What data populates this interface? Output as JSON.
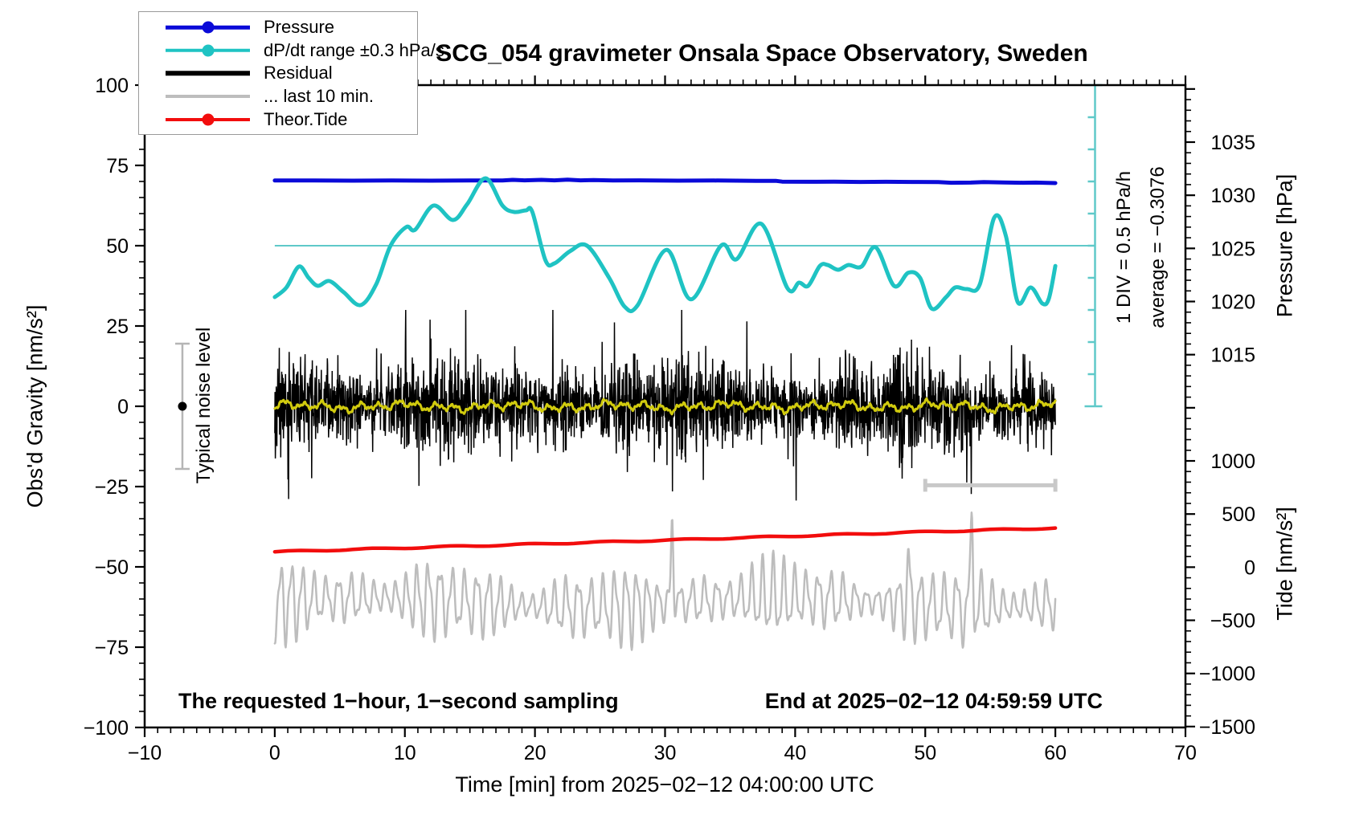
{
  "title": "SCG_054 gravimeter Onsala Space Observatory, Sweden",
  "legend": {
    "items": [
      {
        "label": "Pressure",
        "color": "#0a0ad8",
        "marker": "circle",
        "line_width": 4.5
      },
      {
        "label": "dP/dt range ±0.3 hPa/s",
        "color": "#1fc3c3",
        "marker": "circle",
        "line_width": 4.5
      },
      {
        "label": "Residual",
        "color": "#000000",
        "marker": "none",
        "line_width": 5.5
      },
      {
        "label": "... last 10 min.",
        "color": "#bdbdbd",
        "marker": "none",
        "line_width": 4
      },
      {
        "label": "Theor.Tide",
        "color": "#f20d0d",
        "marker": "circle",
        "line_width": 4
      }
    ]
  },
  "annotations": {
    "bottom_left": "The requested 1−hour, 1−second sampling",
    "bottom_right": "End at 2025−02−12 04:59:59 UTC",
    "scalebar_line1": "1 DIV = 0.5 hPa/h",
    "scalebar_line2": "average = −0.3076",
    "noise_label": "Typical noise level"
  },
  "colors": {
    "frame": "#000000",
    "ref_cyan": "#5fc9c9",
    "scalebar_gray": "#c8c8c8",
    "errorbar_gray": "#b5b5b5",
    "legend_border": "#9a9a9a"
  },
  "chart_data": {
    "type": "line",
    "title": "SCG_054 gravimeter Onsala Space Observatory, Sweden",
    "grid": false,
    "legend_position": "top-left",
    "x": {
      "label": "Time [min] from 2025−02−12 04:00:00 UTC",
      "range": [
        -10,
        70
      ],
      "major_step": 10,
      "minor_step": 1,
      "tick_values": [
        -10,
        0,
        10,
        20,
        30,
        40,
        50,
        60,
        70
      ],
      "tick_labels": [
        "−10",
        "0",
        "10",
        "20",
        "30",
        "40",
        "50",
        "60",
        "70"
      ]
    },
    "y": {
      "label": "Obs'd Gravity [nm/s²]",
      "range": [
        -100,
        100
      ],
      "major_step": 25,
      "minor_step": 5,
      "tick_values": [
        100,
        75,
        50,
        25,
        0,
        -25,
        -50,
        -75,
        -100
      ],
      "tick_labels": [
        "100",
        "75",
        "50",
        "25",
        "0",
        "−25",
        "−50",
        "−75",
        "−100"
      ]
    },
    "y2_geometry": {
      "g_top": 82.25,
      "g_step": 3.3085,
      "k_min": -5,
      "k_max": 55
    },
    "y2_pressure": {
      "label": "Pressure [hPa]",
      "tick_labels": [
        "1035",
        "1030",
        "1025",
        "1020",
        "1015"
      ],
      "k_indices": [
        0,
        5,
        10,
        15,
        20
      ],
      "hPa_per_div": 5
    },
    "y2_tide": {
      "label": "Tide [nm/s²]",
      "tick_labels": [
        "1000",
        "500",
        "0",
        "−500",
        "−1000",
        "−1500"
      ],
      "k_indices": [
        30,
        35,
        40,
        45,
        50,
        55
      ],
      "nms2_per_div": 500
    },
    "extras": {
      "dpdt_ref_line": {
        "gravity": 50,
        "t_min": 0,
        "t_max": 63.05
      },
      "dpdt_scalebar": {
        "t": 63.05,
        "g_min": 0,
        "g_max": 100,
        "divisions": 10,
        "div_label": "1 DIV = 0.5 hPa/h",
        "average": -0.3076
      },
      "noise_errorbar": {
        "t": -7.1,
        "center_g": 0,
        "half_range_g": 19.5
      },
      "last10_window_bar": {
        "t_min": 50,
        "t_max": 60,
        "g": -24.6
      }
    },
    "series": [
      {
        "name": "pressure",
        "color": "#0a0ad8",
        "width": 5,
        "smooth": false,
        "units_note": "plotted on gravity scale; right axis reads ~1031.4 hPa start, ~1031.1 hPa end, trend −0.3076 hPa/h",
        "points": [
          [
            0,
            70.3
          ],
          [
            3,
            70.3
          ],
          [
            6,
            70.25
          ],
          [
            9,
            70.3
          ],
          [
            12,
            70.25
          ],
          [
            15,
            70.3
          ],
          [
            17.5,
            70.3
          ],
          [
            18.3,
            70.5
          ],
          [
            19.2,
            70.35
          ],
          [
            20.5,
            70.5
          ],
          [
            21.5,
            70.35
          ],
          [
            22.5,
            70.55
          ],
          [
            23.5,
            70.35
          ],
          [
            24.5,
            70.45
          ],
          [
            26,
            70.3
          ],
          [
            28,
            70.35
          ],
          [
            31,
            70.25
          ],
          [
            34,
            70.3
          ],
          [
            37,
            70.2
          ],
          [
            38.5,
            70.2
          ],
          [
            39,
            69.95
          ],
          [
            41,
            69.9
          ],
          [
            43,
            69.95
          ],
          [
            45,
            69.85
          ],
          [
            47,
            69.9
          ],
          [
            49,
            69.85
          ],
          [
            51,
            69.8
          ],
          [
            52,
            69.6
          ],
          [
            53.5,
            69.65
          ],
          [
            54.5,
            69.8
          ],
          [
            56,
            69.7
          ],
          [
            57.5,
            69.6
          ],
          [
            58.5,
            69.65
          ],
          [
            60,
            69.5
          ]
        ]
      },
      {
        "name": "dpdt_range",
        "color": "#1fc3c3",
        "width": 5,
        "smooth": true,
        "units_note": "dP/dt, zero at gravity 50, full scale ±0.3 hPa/s",
        "points": [
          [
            0,
            34
          ],
          [
            0.9,
            37
          ],
          [
            1.85,
            43.5
          ],
          [
            2.6,
            40
          ],
          [
            3.3,
            37.5
          ],
          [
            4.2,
            39
          ],
          [
            5.3,
            35.5
          ],
          [
            6.6,
            31.5
          ],
          [
            7.8,
            38
          ],
          [
            8.9,
            50
          ],
          [
            10.1,
            55.8
          ],
          [
            10.8,
            55
          ],
          [
            12.2,
            62.5
          ],
          [
            13.7,
            58
          ],
          [
            14.8,
            63
          ],
          [
            16.2,
            71
          ],
          [
            17.5,
            62.5
          ],
          [
            18.4,
            60.5
          ],
          [
            19.3,
            61
          ],
          [
            19.8,
            60.5
          ],
          [
            20.8,
            45.5
          ],
          [
            21.5,
            44.5
          ],
          [
            22.7,
            48.3
          ],
          [
            24,
            50
          ],
          [
            25.7,
            40
          ],
          [
            26.9,
            31
          ],
          [
            27.9,
            31.5
          ],
          [
            30.1,
            48.7
          ],
          [
            32,
            33.3
          ],
          [
            34.3,
            50
          ],
          [
            35.5,
            45.8
          ],
          [
            37.4,
            56.8
          ],
          [
            39.4,
            36.8
          ],
          [
            40.3,
            38.5
          ],
          [
            41,
            37.5
          ],
          [
            41.9,
            43.7
          ],
          [
            42.5,
            44
          ],
          [
            43.3,
            42.5
          ],
          [
            44.1,
            44
          ],
          [
            45.1,
            43.5
          ],
          [
            46.2,
            49.5
          ],
          [
            47.6,
            37.5
          ],
          [
            48.7,
            41.6
          ],
          [
            49.6,
            40
          ],
          [
            50.5,
            30.4
          ],
          [
            51.6,
            34
          ],
          [
            52.3,
            37
          ],
          [
            53.2,
            36.5
          ],
          [
            54.2,
            38
          ],
          [
            55.3,
            58.7
          ],
          [
            56.2,
            53
          ],
          [
            57.1,
            32.5
          ],
          [
            58.1,
            37
          ],
          [
            59,
            32
          ],
          [
            59.5,
            33.5
          ],
          [
            60,
            43.7
          ]
        ]
      },
      {
        "name": "residual",
        "color": "#000000",
        "width": 1.5,
        "procedural": {
          "kind": "noise",
          "seed": 11,
          "n": 2600,
          "t_min": 0,
          "t_max": 60,
          "center": 0,
          "sigma": 6.3,
          "env": [
            [
              16.7,
              0.22,
              2.3
            ],
            [
              4.3,
              0.12,
              0.0
            ]
          ],
          "spike_prob": 0.05,
          "spike_scale": [
            1.7,
            3.2
          ],
          "clamp": 30
        }
      },
      {
        "name": "residual_mean",
        "color": "#d1cb0e",
        "width": 3,
        "procedural": {
          "kind": "sines",
          "seed": 3,
          "step": 0.075,
          "t_min": 0,
          "t_max": 60,
          "center": 0,
          "components": [
            [
              1.45,
              0.85
            ],
            [
              3.1,
              0.5
            ],
            [
              0.62,
              0.45
            ],
            [
              8.3,
              0.55
            ],
            [
              0.27,
              0.35
            ]
          ]
        }
      },
      {
        "name": "last10",
        "color": "#bdbdbd",
        "width": 2.5,
        "units_note": "last 10 min residual, replotted around gravity −61 (~ tide −350 nm/s² on right axis)",
        "procedural": {
          "kind": "osc",
          "seed": 5,
          "step": 0.04,
          "t_min": 0,
          "t_max": 60,
          "center": -61,
          "drift": [
            31,
            1.5
          ],
          "carrier_period": 0.88,
          "phase_wobble": [
            9.5,
            0.9
          ],
          "harmonic": [
            0.41,
            0.35
          ],
          "amp_base": 8.2,
          "amp_mod": [
            [
              12.7,
              3.0,
              1.2
            ],
            [
              5.3,
              1.8,
              0.5
            ]
          ],
          "spike_width": 0.12,
          "spikes": [
            [
              30.55,
              26
            ],
            [
              53.6,
              27
            ],
            [
              48.7,
              12
            ]
          ]
        }
      },
      {
        "name": "theor_tide",
        "color": "#f20d0d",
        "width": 4.5,
        "smooth": false,
        "units_note": "right tide axis: ~+140 nm/s² at 0 min rising to ~+370 nm/s² at 60 min",
        "points": [
          [
            0,
            -45.3
          ],
          [
            10,
            -44.1
          ],
          [
            20,
            -42.9
          ],
          [
            30,
            -41.7
          ],
          [
            40,
            -40.4
          ],
          [
            50,
            -39.1
          ],
          [
            60,
            -37.9
          ]
        ],
        "ripple": [
          6,
          0.2
        ]
      }
    ]
  }
}
